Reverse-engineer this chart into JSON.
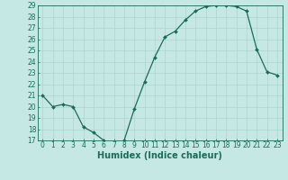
{
  "x": [
    0,
    1,
    2,
    3,
    4,
    5,
    6,
    7,
    8,
    9,
    10,
    11,
    12,
    13,
    14,
    15,
    16,
    17,
    18,
    19,
    20,
    21,
    22,
    23
  ],
  "y": [
    21.0,
    20.0,
    20.2,
    20.0,
    18.2,
    17.7,
    17.0,
    16.7,
    17.0,
    19.8,
    22.2,
    24.4,
    26.2,
    26.7,
    27.7,
    28.5,
    28.9,
    29.0,
    29.0,
    28.9,
    28.5,
    25.1,
    23.1,
    22.8
  ],
  "line_color": "#1a6b5a",
  "marker": "D",
  "marker_size": 2.0,
  "bg_color": "#c5e8e5",
  "grid_color": "#a8d0cd",
  "xlabel": "Humidex (Indice chaleur)",
  "ylim": [
    17,
    29
  ],
  "xlim_min": -0.5,
  "xlim_max": 23.5,
  "yticks": [
    17,
    18,
    19,
    20,
    21,
    22,
    23,
    24,
    25,
    26,
    27,
    28,
    29
  ],
  "xticks": [
    0,
    1,
    2,
    3,
    4,
    5,
    6,
    7,
    8,
    9,
    10,
    11,
    12,
    13,
    14,
    15,
    16,
    17,
    18,
    19,
    20,
    21,
    22,
    23
  ],
  "tick_label_fontsize": 5.5,
  "xlabel_fontsize": 7.0,
  "tick_color": "#1a6b5a",
  "axis_color": "#1a6b5a",
  "linewidth": 0.9
}
